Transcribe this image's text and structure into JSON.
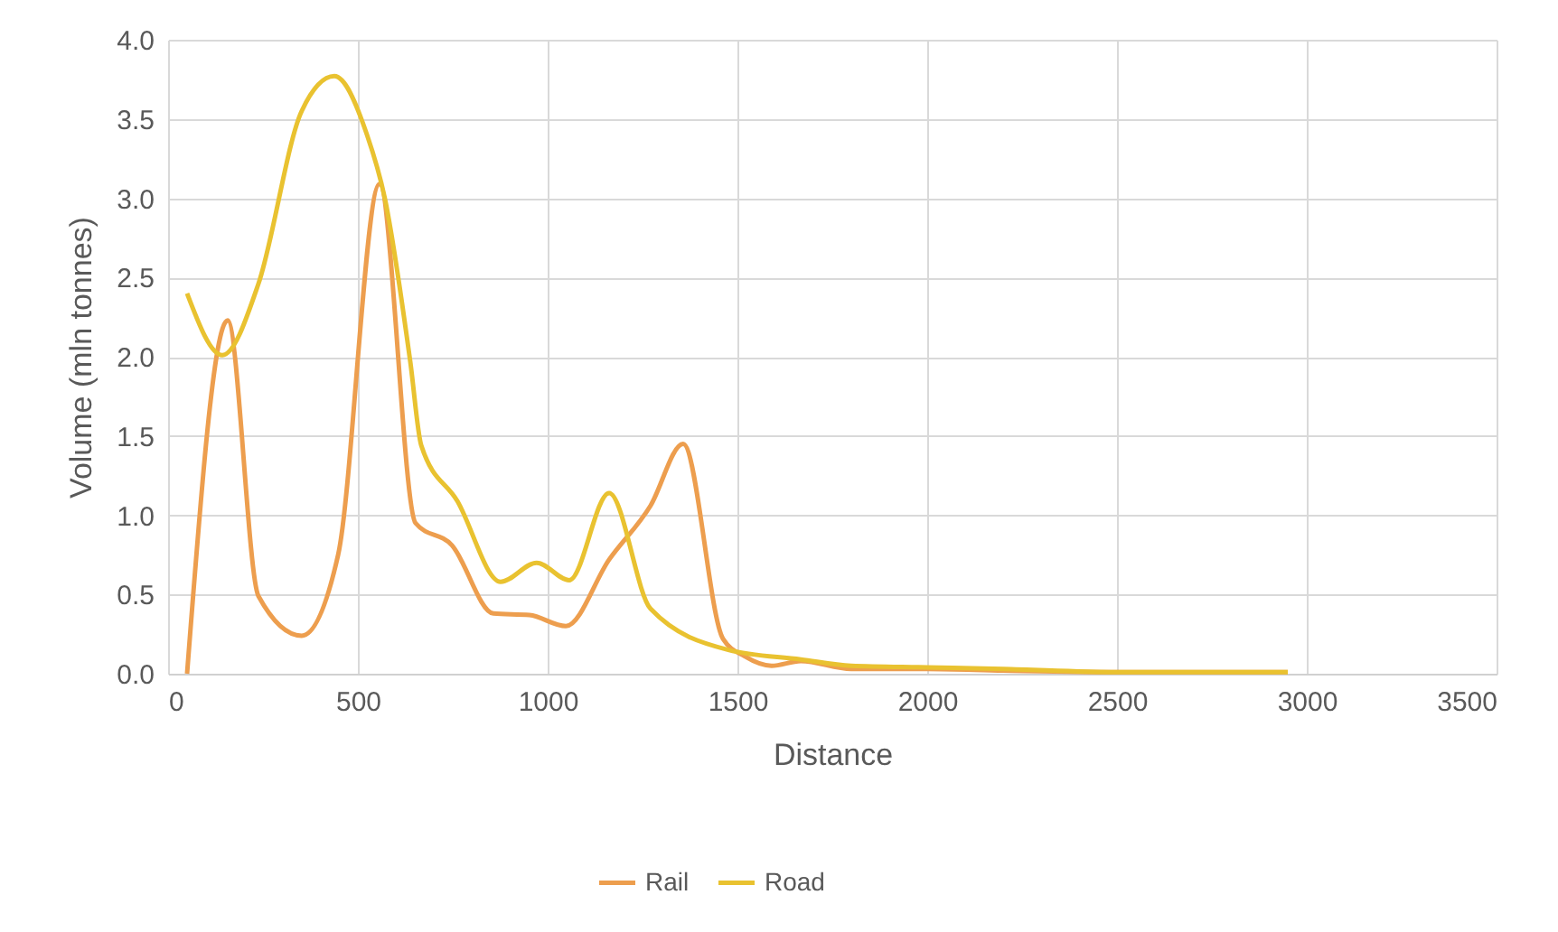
{
  "chart_data": {
    "type": "line",
    "xlabel": "Distance",
    "ylabel": "Volume (mln tonnes)",
    "xlim": [
      0,
      3500
    ],
    "xticks": [
      0,
      500,
      1000,
      1500,
      2000,
      2500,
      3000,
      3500
    ],
    "ylim": [
      0,
      4
    ],
    "yticks": [
      {
        "value": 0,
        "label": "0.0"
      },
      0.5,
      {
        "value": 1,
        "label": "1.0"
      },
      1.5,
      {
        "value": 2,
        "label": "2.0"
      },
      2.5,
      {
        "value": 3,
        "label": "3.0"
      },
      3.5,
      {
        "value": 4,
        "label": "4.0"
      }
    ],
    "grid": true,
    "legend": "bottom",
    "marker": "none",
    "series": [
      {
        "name": "Rail",
        "color": "#ed9e4e",
        "x": [
          50,
          157,
          238,
          352,
          448,
          557,
          652,
          748,
          857,
          952,
          1048,
          1162,
          1271,
          1357,
          1462,
          1519,
          1590,
          1667,
          1800,
          2000,
          2200,
          2500,
          2950
        ],
        "values": [
          0,
          2.23,
          0.49,
          0.24,
          0.75,
          3.09,
          0.95,
          0.81,
          0.38,
          0.37,
          0.3,
          0.72,
          1.06,
          1.45,
          0.22,
          0.11,
          0.05,
          0.08,
          0.03,
          0.03,
          0.02,
          0.01,
          0.01
        ]
      },
      {
        "name": "Road",
        "color": "#e9c230",
        "x": [
          50,
          143,
          238,
          352,
          438,
          524,
          571,
          638,
          667,
          762,
          876,
          971,
          1057,
          1162,
          1271,
          1476,
          1667,
          1800,
          2000,
          2200,
          2500,
          2950
        ],
        "values": [
          2.4,
          2.01,
          2.46,
          3.55,
          3.77,
          3.4,
          3.0,
          1.97,
          1.44,
          1.09,
          0.58,
          0.7,
          0.59,
          1.14,
          0.41,
          0.15,
          0.09,
          0.05,
          0.04,
          0.03,
          0.01,
          0.01
        ]
      }
    ]
  }
}
